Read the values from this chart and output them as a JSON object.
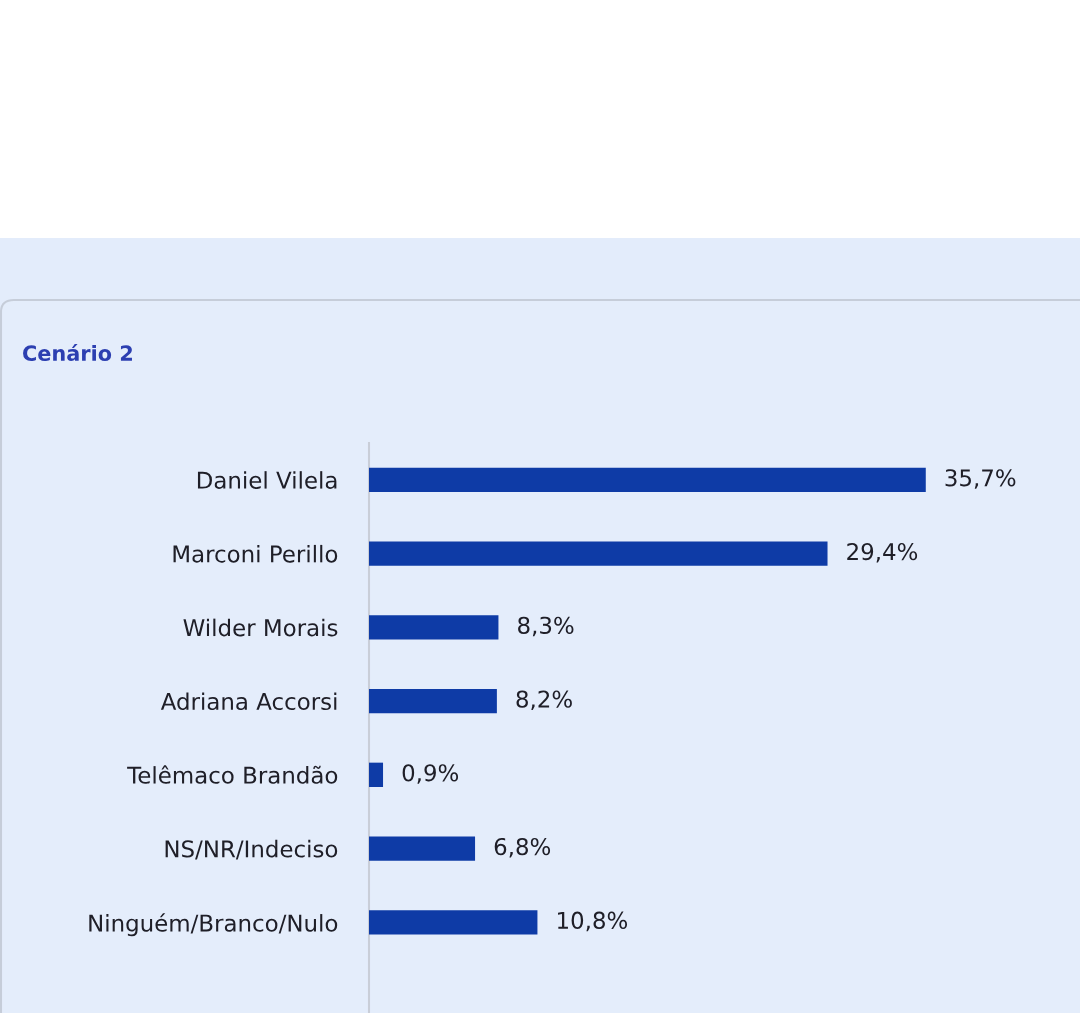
{
  "chart_data": {
    "type": "bar",
    "orientation": "horizontal",
    "title": "Cenário 2",
    "categories": [
      "Daniel Vilela",
      "Marconi Perillo",
      "Wilder Morais",
      "Adriana Accorsi",
      "Telêmaco Brandão",
      "NS/NR/Indeciso",
      "Ninguém/Branco/Nulo"
    ],
    "values": [
      35.7,
      29.4,
      8.3,
      8.2,
      0.9,
      6.8,
      10.8
    ],
    "color": "#0e3ba6",
    "value_labels": [
      "35,7%",
      "29,4%",
      "8,3%",
      "8,2%",
      "0,9%",
      "6,8%",
      "10,8%"
    ]
  }
}
